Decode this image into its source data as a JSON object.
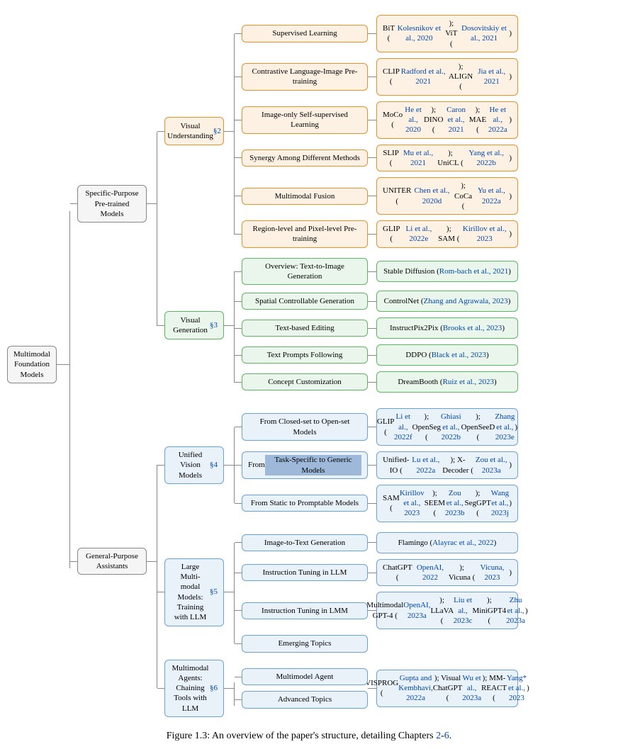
{
  "colors": {
    "root_border": "#888888",
    "root_bg": "#f0f0f0",
    "gray_border": "#888888",
    "gray_bg": "#f5f5f5",
    "orange_border": "#e8902a",
    "orange_bg": "#fdf1e4",
    "green_border": "#5cb563",
    "green_bg": "#eaf6eb",
    "blue_border": "#6aa2d8",
    "blue_bg": "#e9f1f9",
    "link": "#0047ab",
    "text": "#000000"
  },
  "layout": {
    "root_w": 70,
    "root_h": 44,
    "l1_w": 98,
    "l1_h": 30,
    "l2_w": 84,
    "l2_h": 40,
    "l3_w": 178,
    "l3_h": 24,
    "l4_w": 200,
    "l4_h": 30,
    "conn_root": 18,
    "conn_l1": 14,
    "conn_l2": 14,
    "conn_l3": 12,
    "gap_v": 4,
    "fontsize_node": 11,
    "fontsize_caption": 14
  },
  "root": "Multimodal Foundation Models",
  "caption_pre": "Figure 1.3:  An overview of the paper's structure, detailing Chapters ",
  "caption_link": "2",
  "caption_mid": "-",
  "caption_link2": "6",
  "caption_post": ".",
  "level1": [
    {
      "label": "Specific-Purpose Pre-trained Models",
      "color": "gray"
    },
    {
      "label": "General-Purpose Assistants",
      "color": "gray"
    }
  ],
  "l2": {
    "vu": {
      "label": "Visual Understanding ",
      "sec": "§2",
      "color": "orange"
    },
    "vg": {
      "label": "Visual Generation ",
      "sec": "§3",
      "color": "green"
    },
    "uvm": {
      "label": "Unified Vision Models ",
      "sec": "§4",
      "color": "blue"
    },
    "lmm": {
      "label": "Large Multi-modal Models: Training with LLM ",
      "sec": "§5",
      "color": "blue"
    },
    "ma": {
      "label": "Multimodal Agents: Chaining Tools with LLM ",
      "sec": "§6",
      "color": "blue"
    }
  },
  "vu_items": [
    {
      "t": "Supervised Learning",
      "r": "BiT (Kolesnikov et al., 2020); ViT (Dosovitskiy et al., 2021)",
      "rc": [
        [
          "BiT (",
          "Kolesnikov et al., 2020",
          "); "
        ],
        [
          "ViT (",
          "Dosovitskiy et al., 2021",
          ")"
        ]
      ]
    },
    {
      "t": "Contrastive Language-Image Pre-training",
      "r": "",
      "rc": [
        [
          "CLIP (",
          "Radford et al., 2021",
          "); "
        ],
        [
          "ALIGN (",
          "Jia et al., 2021",
          ")"
        ]
      ]
    },
    {
      "t": "Image-only Self-supervised Learning",
      "r": "",
      "rc": [
        [
          "MoCo (",
          "He et al., 2020",
          "); DINO (",
          "Caron et al., 2021",
          "); MAE (",
          "He et al., 2022a",
          ")"
        ]
      ]
    },
    {
      "t": "Synergy Among Different Methods",
      "r": "",
      "rc": [
        [
          "SLIP (",
          "Mu et al., 2021",
          "); "
        ],
        [
          "UniCL (",
          "Yang et al., 2022b",
          ")"
        ]
      ]
    },
    {
      "t": "Multimodal Fusion",
      "r": "",
      "rc": [
        [
          "UNITER (",
          "Chen et al., 2020d",
          "); "
        ],
        [
          "CoCa (",
          "Yu et al., 2022a",
          ")"
        ]
      ]
    },
    {
      "t": "Region-level and Pixel-level Pre-training",
      "r": "",
      "rc": [
        [
          "GLIP (",
          "Li et al., 2022e",
          "); "
        ],
        [
          "SAM (",
          "Kirillov et al., 2023",
          ")"
        ]
      ]
    }
  ],
  "vg_items": [
    {
      "t": "Overview:  Text-to-Image Generation",
      "rc": [
        [
          "Stable Diffusion (",
          "Rom-bach et al., 2021",
          ")"
        ]
      ]
    },
    {
      "t": "Spatial Controllable Generation",
      "rc": [
        [
          "ControlNet (",
          "Zhang and Agrawala, 2023",
          ")"
        ]
      ]
    },
    {
      "t": "Text-based Editing",
      "rc": [
        [
          "InstructPix2Pix (",
          "Brooks et al., 2023",
          ")"
        ]
      ]
    },
    {
      "t": "Text Prompts Following",
      "rc": [
        [
          "DDPO (",
          "Black et al., 2023",
          ")"
        ]
      ]
    },
    {
      "t": "Concept Customization",
      "rc": [
        [
          "DreamBooth (",
          "Ruiz et al., 2023",
          ")"
        ]
      ]
    }
  ],
  "uvm_items": [
    {
      "t": "From Closed-set to Open-set Models",
      "rc": [
        [
          "GLIP (",
          "Li et al., 2022f",
          "); "
        ],
        [
          "OpenSeg (",
          "Ghiasi et al., 2022b",
          "); "
        ],
        [
          "OpenSeeD (",
          "Zhang et al., 2023e",
          ")"
        ]
      ]
    },
    {
      "t": "From Task-Specific to Generic Models",
      "hl": true,
      "rc": [
        [
          "Unified-IO (",
          "Lu et al., 2022a",
          "); "
        ],
        [
          "X-Decoder (",
          "Zou et al., 2023a",
          ")"
        ]
      ]
    },
    {
      "t": "From Static to Promptable Models",
      "rc": [
        [
          "SAM (",
          "Kirillov et al., 2023",
          "); "
        ],
        [
          "SEEM (",
          "Zou et al., 2023b",
          "); "
        ],
        [
          "SegGPT (",
          "Wang et al., 2023j",
          ")"
        ]
      ]
    }
  ],
  "lmm_items": [
    {
      "t": "Image-to-Text Generation",
      "rc": [
        [
          "Flamingo (",
          "Alayrac et al., 2022",
          ")"
        ]
      ]
    },
    {
      "t": "Instruction Tuning in LLM",
      "rc": [
        [
          "ChatGPT (",
          "OpenAI, 2022",
          "); "
        ],
        [
          "Vicuna (",
          "Vicuna, 2023",
          ")"
        ]
      ]
    },
    {
      "t": "Instruction Tuning in LMM",
      "rc": [
        [
          "Multimodal GPT-4 (",
          "OpenAI, 2023a",
          "); "
        ],
        [
          "LLaVA (",
          "Liu et al., 2023c",
          "); "
        ],
        [
          "MiniGPT4 (",
          "Zhu et al., 2023a",
          ")"
        ]
      ]
    },
    {
      "t": "Emerging Topics",
      "noref": true
    }
  ],
  "ma_items": [
    {
      "t": "Multimodel Agent",
      "noref": true
    },
    {
      "t": "Advanced Topics",
      "noref": true
    }
  ],
  "ma_ref": {
    "rc": [
      [
        "VISPROG (",
        "Gupta and Kembhavi, 2022a",
        "); "
      ],
      [
        "Visual ChatGPT (",
        "Wu et al., 2023a",
        "); "
      ],
      [
        "MM-REACT (",
        "Yang* et al., 2023",
        ")"
      ]
    ]
  }
}
